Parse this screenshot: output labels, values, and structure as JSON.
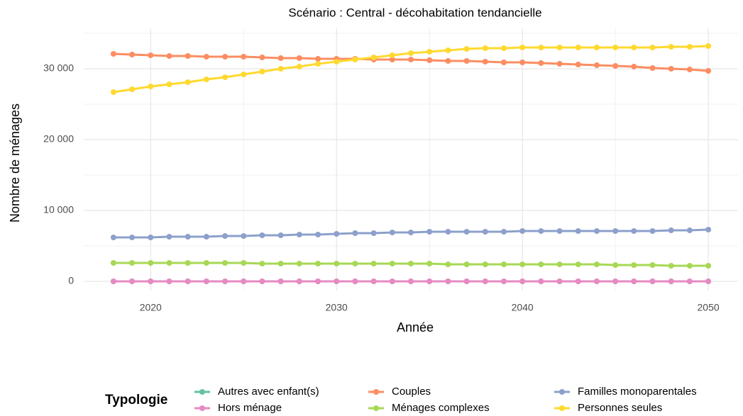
{
  "chart_data": {
    "type": "line",
    "title": "Scénario : Central - décohabitation tendancielle",
    "x_label": "Année",
    "y_label": "Nombre de ménages",
    "legend_title": "Typologie",
    "legend_position": "bottom",
    "x": [
      2018,
      2019,
      2020,
      2021,
      2022,
      2023,
      2024,
      2025,
      2026,
      2027,
      2028,
      2029,
      2030,
      2031,
      2032,
      2033,
      2034,
      2035,
      2036,
      2037,
      2038,
      2039,
      2040,
      2041,
      2042,
      2043,
      2044,
      2045,
      2046,
      2047,
      2048,
      2049,
      2050
    ],
    "xlim": [
      2016.4,
      2051.6
    ],
    "xticks": [
      2020,
      2030,
      2040,
      2050
    ],
    "minor_xticks": [
      2025,
      2035,
      2045
    ],
    "ylim": [
      -1300,
      35700
    ],
    "yticks": [
      0,
      {
        "value": 10000,
        "label": "10 000"
      },
      {
        "value": 20000,
        "label": "20 000"
      },
      {
        "value": 30000,
        "label": "30 000"
      }
    ],
    "minor_yticks": [
      5000,
      15000,
      25000,
      35000
    ],
    "grid": true,
    "series": [
      {
        "name": "Autres avec enfant(s)",
        "color": "#66c2a5",
        "values": [
          0,
          0,
          0,
          0,
          0,
          0,
          0,
          0,
          0,
          0,
          0,
          0,
          0,
          0,
          0,
          0,
          0,
          0,
          0,
          0,
          0,
          0,
          0,
          0,
          0,
          0,
          0,
          0,
          0,
          0,
          0,
          0,
          0
        ]
      },
      {
        "name": "Couples",
        "color": "#fc8d62",
        "values": [
          32100,
          32000,
          31900,
          31800,
          31800,
          31700,
          31700,
          31700,
          31600,
          31500,
          31500,
          31400,
          31400,
          31400,
          31300,
          31300,
          31300,
          31200,
          31100,
          31100,
          31000,
          30900,
          30900,
          30800,
          30700,
          30600,
          30500,
          30400,
          30300,
          30100,
          30000,
          29900,
          29700
        ]
      },
      {
        "name": "Familles monoparentales",
        "color": "#8da0cb",
        "values": [
          6200,
          6200,
          6200,
          6300,
          6300,
          6300,
          6400,
          6400,
          6500,
          6500,
          6600,
          6600,
          6700,
          6800,
          6800,
          6900,
          6900,
          7000,
          7000,
          7000,
          7000,
          7000,
          7100,
          7100,
          7100,
          7100,
          7100,
          7100,
          7100,
          7100,
          7200,
          7200,
          7300
        ]
      },
      {
        "name": "Hors ménage",
        "color": "#e78ac3",
        "values": [
          0,
          0,
          0,
          0,
          0,
          0,
          0,
          0,
          0,
          0,
          0,
          0,
          0,
          0,
          0,
          0,
          0,
          0,
          0,
          0,
          0,
          0,
          0,
          0,
          0,
          0,
          0,
          0,
          0,
          0,
          0,
          0,
          0
        ]
      },
      {
        "name": "Ménages complexes",
        "color": "#a6d854",
        "values": [
          2600,
          2600,
          2600,
          2600,
          2600,
          2600,
          2600,
          2600,
          2500,
          2500,
          2500,
          2500,
          2500,
          2500,
          2500,
          2500,
          2500,
          2500,
          2400,
          2400,
          2400,
          2400,
          2400,
          2400,
          2400,
          2400,
          2400,
          2300,
          2300,
          2300,
          2200,
          2200,
          2200
        ]
      },
      {
        "name": "Personnes seules",
        "color": "#ffd92f",
        "values": [
          26700,
          27100,
          27500,
          27800,
          28100,
          28500,
          28800,
          29200,
          29600,
          30000,
          30300,
          30700,
          31000,
          31300,
          31600,
          31900,
          32200,
          32400,
          32600,
          32800,
          32900,
          32900,
          33000,
          33000,
          33000,
          33000,
          33000,
          33000,
          33000,
          33000,
          33100,
          33100,
          33200
        ]
      }
    ]
  }
}
